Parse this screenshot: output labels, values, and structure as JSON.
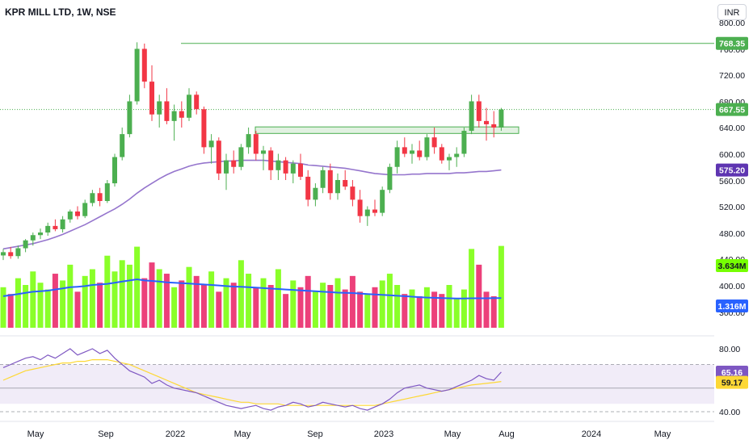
{
  "header": {
    "title": "KPR MILL LTD, 1W, NSE",
    "currency": "INR"
  },
  "colors": {
    "up": "#4caf50",
    "down": "#f23645",
    "vol_up": "#76ff03",
    "vol_down": "#e91e63",
    "ma": "#9575cd",
    "vol_ma": "#2962ff",
    "rsi": "#7e57c2",
    "rsi_ma": "#fdd835",
    "level_line": "#4caf50",
    "rsi_band": "#ede7f6"
  },
  "price_axis": {
    "ticks": [
      "800.00",
      "760.00",
      "720.00",
      "680.00",
      "640.00",
      "600.00",
      "560.00",
      "520.00",
      "480.00",
      "440.00",
      "400.00",
      "300.00"
    ]
  },
  "rsi_axis": {
    "ticks": [
      "80.00",
      "40.00"
    ]
  },
  "time_axis": {
    "labels": [
      "May",
      "Sep",
      "2022",
      "May",
      "Sep",
      "2023",
      "May",
      "Aug",
      "2024",
      "May"
    ]
  },
  "badges": {
    "resistance": "768.35",
    "last_price": "667.55",
    "ma_value": "575.20",
    "volume": "3.634M",
    "volume_ma": "1.316M",
    "rsi": "65.16",
    "rsi_ma": "59.17"
  },
  "chart_data": {
    "type": "candlestick",
    "title": "KPR MILL LTD, 1W, NSE",
    "price_ylim": [
      440,
      800
    ],
    "horizontal_line": 768.35,
    "last_close": 667.55,
    "support_zone": [
      631,
      641
    ],
    "price_ma_last": 575.2,
    "candles": [
      {
        "o": 445,
        "h": 455,
        "l": 438,
        "c": 450
      },
      {
        "o": 450,
        "h": 458,
        "l": 440,
        "c": 444
      },
      {
        "o": 444,
        "h": 460,
        "l": 440,
        "c": 456
      },
      {
        "o": 456,
        "h": 470,
        "l": 450,
        "c": 468
      },
      {
        "o": 468,
        "h": 480,
        "l": 460,
        "c": 476
      },
      {
        "o": 476,
        "h": 486,
        "l": 470,
        "c": 480
      },
      {
        "o": 480,
        "h": 495,
        "l": 475,
        "c": 490
      },
      {
        "o": 490,
        "h": 500,
        "l": 482,
        "c": 485
      },
      {
        "o": 485,
        "h": 505,
        "l": 480,
        "c": 500
      },
      {
        "o": 500,
        "h": 515,
        "l": 495,
        "c": 512
      },
      {
        "o": 512,
        "h": 520,
        "l": 500,
        "c": 505
      },
      {
        "o": 505,
        "h": 530,
        "l": 502,
        "c": 525
      },
      {
        "o": 525,
        "h": 545,
        "l": 520,
        "c": 540
      },
      {
        "o": 540,
        "h": 548,
        "l": 520,
        "c": 528
      },
      {
        "o": 528,
        "h": 560,
        "l": 525,
        "c": 555
      },
      {
        "o": 555,
        "h": 600,
        "l": 550,
        "c": 595
      },
      {
        "o": 595,
        "h": 640,
        "l": 590,
        "c": 630
      },
      {
        "o": 630,
        "h": 690,
        "l": 625,
        "c": 680
      },
      {
        "o": 680,
        "h": 770,
        "l": 675,
        "c": 760
      },
      {
        "o": 760,
        "h": 768,
        "l": 700,
        "c": 710
      },
      {
        "o": 710,
        "h": 735,
        "l": 650,
        "c": 660
      },
      {
        "o": 660,
        "h": 690,
        "l": 640,
        "c": 680
      },
      {
        "o": 680,
        "h": 700,
        "l": 645,
        "c": 650
      },
      {
        "o": 650,
        "h": 675,
        "l": 620,
        "c": 665
      },
      {
        "o": 665,
        "h": 680,
        "l": 640,
        "c": 655
      },
      {
        "o": 655,
        "h": 700,
        "l": 650,
        "c": 690
      },
      {
        "o": 690,
        "h": 695,
        "l": 660,
        "c": 668
      },
      {
        "o": 668,
        "h": 672,
        "l": 600,
        "c": 610
      },
      {
        "o": 610,
        "h": 630,
        "l": 585,
        "c": 620
      },
      {
        "o": 620,
        "h": 625,
        "l": 560,
        "c": 570
      },
      {
        "o": 570,
        "h": 600,
        "l": 545,
        "c": 590
      },
      {
        "o": 590,
        "h": 605,
        "l": 570,
        "c": 580
      },
      {
        "o": 580,
        "h": 615,
        "l": 575,
        "c": 610
      },
      {
        "o": 610,
        "h": 640,
        "l": 600,
        "c": 630
      },
      {
        "o": 630,
        "h": 635,
        "l": 590,
        "c": 600
      },
      {
        "o": 600,
        "h": 612,
        "l": 575,
        "c": 605
      },
      {
        "o": 605,
        "h": 610,
        "l": 560,
        "c": 575
      },
      {
        "o": 575,
        "h": 600,
        "l": 560,
        "c": 590
      },
      {
        "o": 590,
        "h": 595,
        "l": 560,
        "c": 570
      },
      {
        "o": 570,
        "h": 590,
        "l": 555,
        "c": 585
      },
      {
        "o": 585,
        "h": 600,
        "l": 560,
        "c": 565
      },
      {
        "o": 565,
        "h": 575,
        "l": 520,
        "c": 530
      },
      {
        "o": 530,
        "h": 555,
        "l": 520,
        "c": 548
      },
      {
        "o": 548,
        "h": 580,
        "l": 540,
        "c": 575
      },
      {
        "o": 575,
        "h": 585,
        "l": 530,
        "c": 540
      },
      {
        "o": 540,
        "h": 570,
        "l": 530,
        "c": 560
      },
      {
        "o": 560,
        "h": 575,
        "l": 545,
        "c": 550
      },
      {
        "o": 550,
        "h": 560,
        "l": 520,
        "c": 530
      },
      {
        "o": 530,
        "h": 545,
        "l": 495,
        "c": 505
      },
      {
        "o": 505,
        "h": 520,
        "l": 490,
        "c": 515
      },
      {
        "o": 515,
        "h": 530,
        "l": 505,
        "c": 510
      },
      {
        "o": 510,
        "h": 550,
        "l": 505,
        "c": 545
      },
      {
        "o": 545,
        "h": 585,
        "l": 540,
        "c": 580
      },
      {
        "o": 580,
        "h": 620,
        "l": 570,
        "c": 610
      },
      {
        "o": 610,
        "h": 625,
        "l": 595,
        "c": 600
      },
      {
        "o": 600,
        "h": 615,
        "l": 585,
        "c": 605
      },
      {
        "o": 605,
        "h": 620,
        "l": 590,
        "c": 595
      },
      {
        "o": 595,
        "h": 630,
        "l": 590,
        "c": 625
      },
      {
        "o": 625,
        "h": 640,
        "l": 600,
        "c": 610
      },
      {
        "o": 610,
        "h": 615,
        "l": 585,
        "c": 590
      },
      {
        "o": 590,
        "h": 600,
        "l": 575,
        "c": 595
      },
      {
        "o": 595,
        "h": 610,
        "l": 580,
        "c": 600
      },
      {
        "o": 600,
        "h": 640,
        "l": 595,
        "c": 635
      },
      {
        "o": 635,
        "h": 690,
        "l": 630,
        "c": 680
      },
      {
        "o": 680,
        "h": 690,
        "l": 640,
        "c": 650
      },
      {
        "o": 650,
        "h": 670,
        "l": 620,
        "c": 645
      },
      {
        "o": 645,
        "h": 665,
        "l": 625,
        "c": 640
      },
      {
        "o": 640,
        "h": 670,
        "l": 635,
        "c": 667.55
      }
    ],
    "ma": [
      455,
      457,
      459,
      461,
      463,
      466,
      469,
      473,
      477,
      482,
      487,
      492,
      498,
      504,
      510,
      516,
      523,
      531,
      540,
      548,
      555,
      562,
      568,
      573,
      577,
      581,
      584,
      586,
      587,
      588,
      589,
      589,
      590,
      590,
      590,
      590,
      589,
      588,
      587,
      586,
      585,
      583,
      582,
      581,
      580,
      579,
      578,
      576,
      574,
      572,
      570,
      569,
      568,
      568,
      568,
      569,
      569,
      570,
      570,
      570,
      570,
      571,
      571,
      572,
      573,
      573,
      574,
      575.2
    ],
    "volume": {
      "values": [
        1.8,
        1.5,
        2.2,
        1.9,
        2.5,
        2.0,
        1.7,
        2.4,
        2.1,
        2.8,
        1.6,
        2.3,
        2.6,
        2.0,
        3.2,
        2.5,
        3.0,
        2.8,
        3.6,
        2.2,
        2.9,
        2.6,
        2.4,
        1.8,
        2.1,
        2.7,
        2.3,
        1.9,
        2.5,
        1.6,
        2.2,
        2.0,
        3.0,
        2.4,
        1.8,
        2.2,
        1.9,
        2.6,
        1.5,
        2.1,
        1.8,
        2.3,
        1.6,
        2.0,
        1.9,
        2.2,
        1.7,
        2.3,
        1.6,
        1.5,
        1.8,
        2.1,
        2.4,
        1.9,
        1.5,
        1.7,
        1.4,
        1.8,
        1.6,
        1.5,
        1.9,
        1.3,
        1.7,
        3.5,
        2.8,
        1.6,
        1.4,
        3.634
      ],
      "ma": [
        1.4,
        1.45,
        1.5,
        1.55,
        1.6,
        1.62,
        1.65,
        1.7,
        1.75,
        1.8,
        1.82,
        1.85,
        1.9,
        1.92,
        1.95,
        2.0,
        2.05,
        2.1,
        2.15,
        2.1,
        2.08,
        2.05,
        2.02,
        2.0,
        1.98,
        1.96,
        1.94,
        1.92,
        1.9,
        1.88,
        1.85,
        1.83,
        1.82,
        1.8,
        1.78,
        1.76,
        1.74,
        1.72,
        1.7,
        1.68,
        1.66,
        1.64,
        1.62,
        1.6,
        1.58,
        1.56,
        1.55,
        1.54,
        1.52,
        1.5,
        1.48,
        1.46,
        1.44,
        1.42,
        1.4,
        1.38,
        1.36,
        1.34,
        1.33,
        1.32,
        1.31,
        1.3,
        1.3,
        1.31,
        1.31,
        1.31,
        1.315,
        1.316
      ]
    },
    "rsi": {
      "ylim": [
        40,
        85
      ],
      "values": [
        68,
        70,
        72,
        74,
        75,
        73,
        76,
        74,
        77,
        80,
        76,
        78,
        80,
        77,
        79,
        74,
        70,
        66,
        64,
        62,
        58,
        60,
        57,
        55,
        54,
        53,
        52,
        50,
        48,
        46,
        44,
        43,
        42,
        43,
        44,
        42,
        41,
        43,
        44,
        46,
        45,
        43,
        44,
        46,
        45,
        44,
        43,
        44,
        42,
        41,
        43,
        45,
        48,
        52,
        55,
        56,
        57,
        55,
        54,
        53,
        54,
        56,
        58,
        60,
        63,
        61,
        60,
        65.16
      ],
      "ma": [
        60,
        62,
        64,
        66,
        67,
        68,
        69,
        70,
        71,
        71,
        72,
        72,
        73,
        73,
        73,
        72,
        71,
        70,
        68,
        66,
        64,
        62,
        60,
        58,
        56,
        54,
        52,
        51,
        50,
        49,
        48,
        47,
        46,
        46,
        45,
        45,
        45,
        45,
        44,
        44,
        44,
        44,
        44,
        44,
        44,
        44,
        44,
        44,
        44,
        44,
        44,
        45,
        46,
        47,
        48,
        49,
        50,
        51,
        52,
        53,
        54,
        55,
        56,
        57,
        57.5,
        58,
        58.5,
        59.17
      ]
    },
    "rsi_band": [
      45,
      70
    ],
    "x_labels": [
      "May",
      "Sep",
      "2022",
      "May",
      "Sep",
      "2023",
      "May",
      "Aug",
      "2024",
      "May"
    ]
  }
}
